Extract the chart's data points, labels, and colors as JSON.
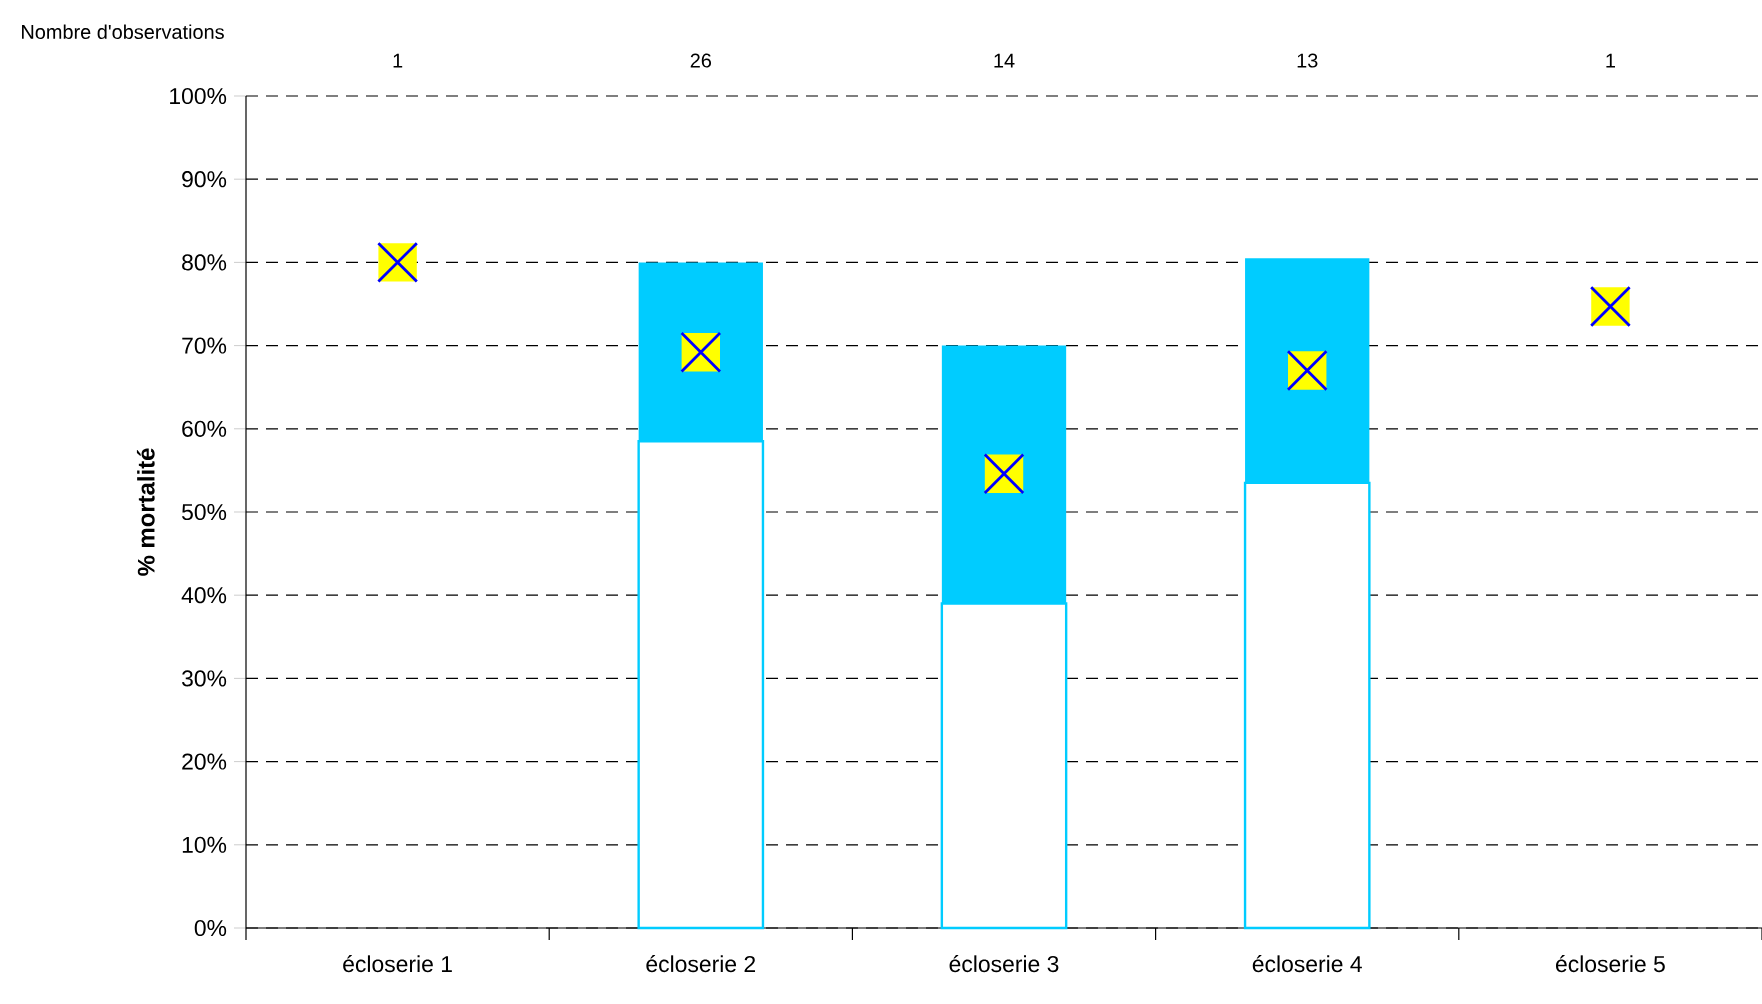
{
  "chart_data": {
    "type": "bar",
    "stacked": true,
    "ylabel": "% mortalité",
    "categories": [
      "écloserie 1",
      "écloserie 2",
      "écloserie 3",
      "écloserie 4",
      "écloserie 5"
    ],
    "series": [
      {
        "color": "#ffffff",
        "values": [
          null,
          58.5,
          39,
          53.5,
          null
        ]
      },
      {
        "color": "#00ccff",
        "values": [
          null,
          21.5,
          31,
          27,
          null
        ]
      },
      {
        "type": "scatter",
        "color": "#ffff00",
        "marker": "square",
        "x": [
          "écloserie 1",
          "écloserie 2",
          "écloserie 3",
          "écloserie 4",
          "écloserie 5"
        ],
        "values": [
          80,
          69.2,
          54.6,
          67,
          74.7
        ]
      }
    ],
    "ylim": [
      0,
      100
    ],
    "yticks": [
      {
        "value": 0,
        "label": "0%"
      },
      {
        "value": 10,
        "label": "10%"
      },
      {
        "value": 20,
        "label": "20%"
      },
      {
        "value": 30,
        "label": "30%"
      },
      {
        "value": 40,
        "label": "40%"
      },
      {
        "value": 50,
        "label": "50%"
      },
      {
        "value": 60,
        "label": "60%"
      },
      {
        "value": 70,
        "label": "70%"
      },
      {
        "value": 80,
        "label": "80%"
      },
      {
        "value": 90,
        "label": "90%"
      },
      {
        "value": 100,
        "label": "100%"
      }
    ],
    "grid": "y",
    "annotations": [
      "Nombre d'observations",
      "1",
      "26",
      "14",
      "13",
      "1"
    ]
  }
}
